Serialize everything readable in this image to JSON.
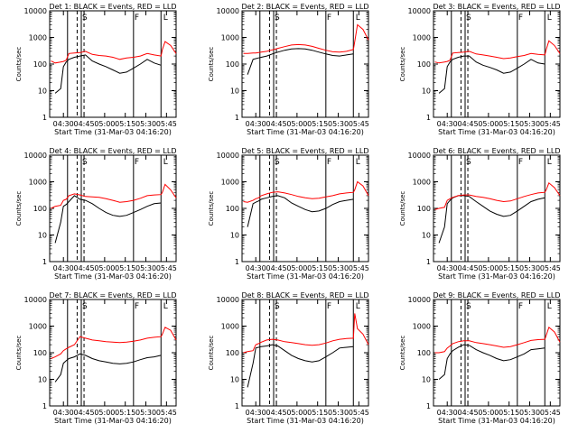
{
  "colors": {
    "events": "#000000",
    "lld": "#ff0000",
    "axis": "#000000",
    "background": "#ffffff"
  },
  "chart_data": {
    "type": "line",
    "ylabel": "Counts/sec",
    "xlabel": "Start Time (31-Mar-03 04:16:20)",
    "xticks": [
      "04:30",
      "04:45",
      "05:00",
      "05:15",
      "05:30",
      "05:45"
    ],
    "xlim_minutes_after_0416": [
      4,
      96
    ],
    "ylim_log": [
      1,
      10000
    ],
    "yticks": [
      1,
      10,
      100,
      1000,
      10000
    ],
    "vertical_markers_minutes": [
      17,
      27,
      65,
      85
    ],
    "dashed_markers_minutes": [
      24,
      29
    ],
    "marker_labels": [
      {
        "text": "S",
        "minute": 27
      },
      {
        "text": "F",
        "minute": 65
      },
      {
        "text": "L",
        "minute": 86
      }
    ],
    "time_series_minutes": [
      5,
      8,
      12,
      14,
      16,
      18,
      22,
      26,
      30,
      35,
      40,
      45,
      50,
      55,
      60,
      65,
      70,
      75,
      80,
      85,
      86,
      88,
      92,
      96
    ],
    "panels": [
      {
        "title": "Det 1: BLACK = Events, RED = LLD",
        "series": [
          {
            "name": "Events",
            "values": [
              null,
              8,
              12,
              80,
              120,
              150,
              180,
              200,
              220,
              130,
              100,
              80,
              60,
              45,
              50,
              70,
              100,
              150,
              110,
              90,
              null,
              null,
              null,
              null
            ]
          },
          {
            "name": "LLD",
            "values": [
              130,
              110,
              120,
              125,
              140,
              250,
              260,
              270,
              300,
              230,
              210,
              200,
              180,
              150,
              170,
              180,
              200,
              250,
              220,
              200,
              350,
              700,
              500,
              250
            ]
          }
        ]
      },
      {
        "title": "Det 2: BLACK = Events, RED = LLD",
        "series": [
          {
            "name": "Events",
            "values": [
              null,
              40,
              150,
              160,
              170,
              180,
              200,
              240,
              280,
              330,
              370,
              380,
              370,
              330,
              280,
              240,
              210,
              200,
              220,
              240,
              null,
              null,
              null,
              null
            ]
          },
          {
            "name": "LLD",
            "values": [
              250,
              250,
              260,
              260,
              270,
              280,
              300,
              340,
              390,
              450,
              520,
              540,
              520,
              460,
              390,
              330,
              290,
              280,
              300,
              350,
              700,
              3000,
              2000,
              800
            ]
          }
        ]
      },
      {
        "title": "Det 3: BLACK = Events, RED = LLD",
        "series": [
          {
            "name": "Events",
            "values": [
              null,
              8,
              12,
              80,
              120,
              150,
              180,
              200,
              200,
              120,
              90,
              75,
              60,
              45,
              50,
              70,
              100,
              150,
              110,
              100,
              null,
              null,
              null,
              null
            ]
          },
          {
            "name": "LLD",
            "values": [
              120,
              110,
              120,
              125,
              140,
              260,
              270,
              280,
              300,
              240,
              220,
              200,
              180,
              160,
              170,
              190,
              210,
              250,
              230,
              220,
              350,
              750,
              500,
              250
            ]
          }
        ]
      },
      {
        "title": "Det 4: BLACK = Events, RED = LLD",
        "series": [
          {
            "name": "Events",
            "values": [
              null,
              5,
              30,
              120,
              140,
              180,
              300,
              220,
              200,
              150,
              100,
              70,
              55,
              50,
              55,
              70,
              90,
              120,
              150,
              160,
              null,
              null,
              null,
              null
            ]
          },
          {
            "name": "LLD",
            "values": [
              100,
              120,
              130,
              200,
              220,
              300,
              350,
              320,
              280,
              270,
              260,
              230,
              200,
              170,
              180,
              200,
              240,
              300,
              320,
              330,
              400,
              800,
              500,
              250
            ]
          }
        ]
      },
      {
        "title": "Det 5: BLACK = Events, RED = LLD",
        "series": [
          {
            "name": "Events",
            "values": [
              null,
              20,
              150,
              170,
              190,
              220,
              250,
              280,
              300,
              250,
              160,
              120,
              90,
              75,
              80,
              100,
              140,
              180,
              200,
              220,
              null,
              null,
              null,
              null
            ]
          },
          {
            "name": "LLD",
            "values": [
              180,
              170,
              200,
              230,
              250,
              300,
              350,
              400,
              420,
              380,
              330,
              280,
              250,
              230,
              240,
              270,
              300,
              350,
              380,
              400,
              500,
              1000,
              700,
              300
            ]
          }
        ]
      },
      {
        "title": "Det 6: BLACK = Events, RED = LLD",
        "series": [
          {
            "name": "Events",
            "values": [
              null,
              5,
              20,
              150,
              200,
              250,
              300,
              300,
              280,
              180,
              120,
              80,
              60,
              50,
              55,
              80,
              120,
              180,
              220,
              250,
              null,
              null,
              null,
              null
            ]
          },
          {
            "name": "LLD",
            "values": [
              90,
              100,
              110,
              200,
              230,
              260,
              300,
              320,
              320,
              280,
              260,
              230,
              200,
              180,
              190,
              230,
              280,
              330,
              380,
              400,
              500,
              900,
              600,
              300
            ]
          }
        ]
      },
      {
        "title": "Det 7: BLACK = Events, RED = LLD",
        "series": [
          {
            "name": "Events",
            "values": [
              null,
              8,
              15,
              40,
              50,
              60,
              70,
              90,
              80,
              60,
              50,
              45,
              40,
              38,
              40,
              45,
              55,
              65,
              70,
              80,
              null,
              null,
              null,
              null
            ]
          },
          {
            "name": "LLD",
            "values": [
              60,
              70,
              90,
              120,
              140,
              160,
              200,
              400,
              350,
              300,
              280,
              260,
              250,
              240,
              250,
              270,
              300,
              350,
              380,
              400,
              500,
              900,
              700,
              300
            ]
          }
        ]
      },
      {
        "title": "Det 8: BLACK = Events, RED = LLD",
        "series": [
          {
            "name": "Events",
            "values": [
              null,
              5,
              40,
              150,
              160,
              170,
              180,
              200,
              180,
              120,
              80,
              60,
              50,
              45,
              50,
              70,
              100,
              150,
              160,
              170,
              null,
              null,
              null,
              null
            ]
          },
          {
            "name": "LLD",
            "values": [
              100,
              110,
              120,
              200,
              220,
              250,
              300,
              320,
              300,
              260,
              240,
              220,
              200,
              190,
              200,
              230,
              280,
              320,
              340,
              350,
              3000,
              800,
              500,
              200
            ]
          }
        ]
      },
      {
        "title": "Det 9: BLACK = Events, RED = LLD",
        "series": [
          {
            "name": "Events",
            "values": [
              null,
              10,
              15,
              60,
              90,
              120,
              160,
              200,
              190,
              130,
              100,
              80,
              60,
              50,
              55,
              70,
              90,
              130,
              140,
              150,
              null,
              null,
              null,
              null
            ]
          },
          {
            "name": "LLD",
            "values": [
              100,
              100,
              110,
              150,
              180,
              220,
              260,
              280,
              280,
              240,
              220,
              200,
              180,
              160,
              170,
              200,
              240,
              290,
              310,
              320,
              450,
              900,
              600,
              250
            ]
          }
        ]
      }
    ]
  }
}
